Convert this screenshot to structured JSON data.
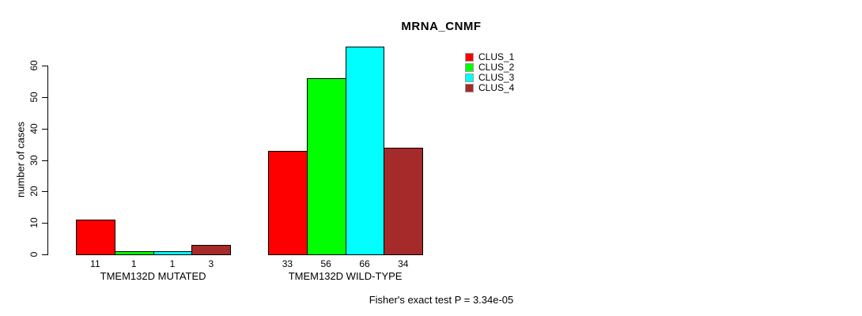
{
  "chart_data": {
    "type": "bar",
    "title": "MRNA_CNMF",
    "xlabel": "",
    "ylabel": "number of cases",
    "ylim": [
      0,
      60
    ],
    "yticks": [
      0,
      10,
      20,
      30,
      40,
      50,
      60
    ],
    "grid": false,
    "legend_position": "top-right",
    "series": [
      {
        "name": "CLUS_1",
        "color": "#FF0000"
      },
      {
        "name": "CLUS_2",
        "color": "#00FF00"
      },
      {
        "name": "CLUS_3",
        "color": "#00FFFF"
      },
      {
        "name": "CLUS_4",
        "color": "#A52A2A"
      }
    ],
    "groups": [
      {
        "label": "TMEM132D MUTATED",
        "values": [
          11,
          1,
          1,
          3
        ]
      },
      {
        "label": "TMEM132D WILD-TYPE",
        "values": [
          33,
          56,
          66,
          34
        ]
      }
    ],
    "annotation": "Fisher's exact test P = 3.34e-05",
    "colors": {
      "bar_border": "#000000",
      "axis": "#000000",
      "text": "#000000",
      "background": "#FFFFFF"
    }
  }
}
